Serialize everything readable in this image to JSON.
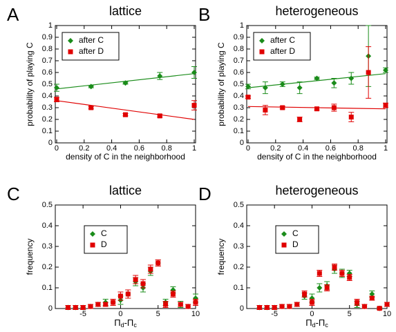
{
  "chart_data": [
    {
      "type": "scatter",
      "panel_label": "A",
      "title": "lattice",
      "xlabel": "density of C in the neighborhood",
      "ylabel": "probability of playing C",
      "x": [
        0,
        0.25,
        0.5,
        0.75,
        1
      ],
      "series": [
        {
          "name": "after C",
          "color": "#1a8c1a",
          "marker": "diamond",
          "values": [
            0.47,
            0.48,
            0.51,
            0.57,
            0.6
          ],
          "errors": [
            0.03,
            0.01,
            0.01,
            0.03,
            0.05
          ]
        },
        {
          "name": "after D",
          "color": "#e00000",
          "marker": "square",
          "values": [
            0.37,
            0.3,
            0.24,
            0.23,
            0.32
          ],
          "errors": [
            0.02,
            0.01,
            0.01,
            0.01,
            0.04
          ]
        }
      ],
      "fits": [
        {
          "color": "#1a8c1a",
          "x": [
            0,
            1
          ],
          "values": [
            0.46,
            0.59
          ]
        },
        {
          "color": "#e00000",
          "x": [
            0,
            1
          ],
          "values": [
            0.36,
            0.2
          ]
        }
      ],
      "xlim": [
        -0.01,
        1.01
      ],
      "ylim": [
        0,
        1
      ],
      "xticks": [
        0,
        0.2,
        0.4,
        0.6,
        0.8,
        1
      ],
      "yticks": [
        0,
        0.1,
        0.2,
        0.3,
        0.4,
        0.5,
        0.6,
        0.7,
        0.8,
        0.9,
        1
      ],
      "legend": "upper left"
    },
    {
      "type": "scatter",
      "panel_label": "B",
      "title": "heterogeneous",
      "xlabel": "density of C in the neighborhood",
      "ylabel": "probability of playing C",
      "x": [
        0,
        0.125,
        0.25,
        0.375,
        0.5,
        0.625,
        0.75,
        0.875,
        1
      ],
      "series": [
        {
          "name": "after C",
          "color": "#1a8c1a",
          "marker": "diamond",
          "values": [
            0.48,
            0.47,
            0.5,
            0.47,
            0.55,
            0.51,
            0.55,
            0.74,
            0.62
          ],
          "errors": [
            0.02,
            0.05,
            0.02,
            0.05,
            0.01,
            0.04,
            0.05,
            0.26,
            0.02
          ]
        },
        {
          "name": "after D",
          "color": "#e00000",
          "marker": "square",
          "values": [
            0.39,
            0.28,
            0.3,
            0.2,
            0.29,
            0.3,
            0.22,
            0.6,
            0.32
          ],
          "errors": [
            0.01,
            0.04,
            0.01,
            0.02,
            0.01,
            0.03,
            0.04,
            0.22,
            0.02
          ]
        }
      ],
      "fits": [
        {
          "color": "#1a8c1a",
          "x": [
            0,
            1
          ],
          "values": [
            0.47,
            0.59
          ]
        },
        {
          "color": "#e00000",
          "x": [
            0,
            1
          ],
          "values": [
            0.31,
            0.29
          ]
        }
      ],
      "xlim": [
        -0.01,
        1.01
      ],
      "ylim": [
        0,
        1
      ],
      "xticks": [
        0,
        0.2,
        0.4,
        0.6,
        0.8,
        1
      ],
      "yticks": [
        0,
        0.1,
        0.2,
        0.3,
        0.4,
        0.5,
        0.6,
        0.7,
        0.8,
        0.9,
        1
      ],
      "legend": "upper left"
    },
    {
      "type": "scatter",
      "panel_label": "C",
      "title": "lattice",
      "xlabel_parts": [
        "Π",
        "d",
        "-Π",
        "c"
      ],
      "ylabel": "frequency",
      "x": [
        -7,
        -6,
        -5,
        -4,
        -3,
        -2,
        -1,
        0,
        1,
        2,
        3,
        4,
        5,
        6,
        7,
        8,
        9,
        10
      ],
      "series": [
        {
          "name": "C",
          "color": "#1a8c1a",
          "marker": "diamond",
          "values": [
            0.005,
            0.005,
            0.005,
            0.01,
            0.02,
            0.03,
            0.03,
            0.04,
            0.07,
            0.13,
            0.1,
            0.18,
            0.22,
            0.03,
            0.09,
            0.02,
            0.01,
            0.05
          ],
          "errors": [
            0.01,
            0.01,
            0.01,
            0.01,
            0.01,
            0.015,
            0.015,
            0.02,
            0.02,
            0.02,
            0.02,
            0.02,
            0.015,
            0.015,
            0.015,
            0.015,
            0.01,
            0.02
          ]
        },
        {
          "name": "D",
          "color": "#e00000",
          "marker": "square",
          "values": [
            0.005,
            0.005,
            0.005,
            0.01,
            0.02,
            0.02,
            0.03,
            0.06,
            0.07,
            0.14,
            0.12,
            0.19,
            0.22,
            0.02,
            0.07,
            0.02,
            0.01,
            0.03
          ],
          "errors": [
            0.01,
            0.01,
            0.01,
            0.01,
            0.01,
            0.01,
            0.015,
            0.02,
            0.02,
            0.02,
            0.02,
            0.02,
            0.015,
            0.015,
            0.015,
            0.01,
            0.01,
            0.015
          ]
        }
      ],
      "xlim": [
        -8.7,
        10
      ],
      "ylim": [
        0,
        0.5
      ],
      "xticks": [
        -5,
        0,
        5,
        10
      ],
      "yticks": [
        0,
        0.1,
        0.2,
        0.3,
        0.4,
        0.5
      ],
      "legend": "center left"
    },
    {
      "type": "scatter",
      "panel_label": "D",
      "title": "heterogeneous",
      "xlabel_parts": [
        "Π",
        "d",
        "-Π",
        "c"
      ],
      "ylabel": "frequency",
      "x": [
        -7,
        -6,
        -5,
        -4,
        -3,
        -2,
        -1,
        0,
        1,
        2,
        3,
        4,
        5,
        6,
        7,
        8,
        9,
        10
      ],
      "series": [
        {
          "name": "C",
          "color": "#1a8c1a",
          "marker": "diamond",
          "values": [
            0.005,
            0.005,
            0.005,
            0.01,
            0.01,
            0.02,
            0.06,
            0.05,
            0.1,
            0.11,
            0.19,
            0.17,
            0.17,
            0.02,
            0.01,
            0.07,
            0.001,
            0.02
          ],
          "errors": [
            0.01,
            0.01,
            0.01,
            0.01,
            0.01,
            0.01,
            0.015,
            0.02,
            0.02,
            0.02,
            0.02,
            0.02,
            0.015,
            0.015,
            0.01,
            0.015,
            0.005,
            0.01
          ]
        },
        {
          "name": "D",
          "color": "#e00000",
          "marker": "square",
          "values": [
            0.005,
            0.005,
            0.005,
            0.01,
            0.01,
            0.02,
            0.07,
            0.03,
            0.17,
            0.1,
            0.2,
            0.17,
            0.15,
            0.03,
            0.01,
            0.05,
            0.001,
            0.02
          ],
          "errors": [
            0.01,
            0.01,
            0.01,
            0.01,
            0.01,
            0.01,
            0.015,
            0.015,
            0.015,
            0.015,
            0.015,
            0.015,
            0.015,
            0.015,
            0.01,
            0.01,
            0.005,
            0.01
          ]
        }
      ],
      "xlim": [
        -8.7,
        10
      ],
      "ylim": [
        0,
        0.5
      ],
      "xticks": [
        -5,
        0,
        5,
        10
      ],
      "yticks": [
        0,
        0.1,
        0.2,
        0.3,
        0.4,
        0.5
      ],
      "legend": "center left"
    }
  ]
}
